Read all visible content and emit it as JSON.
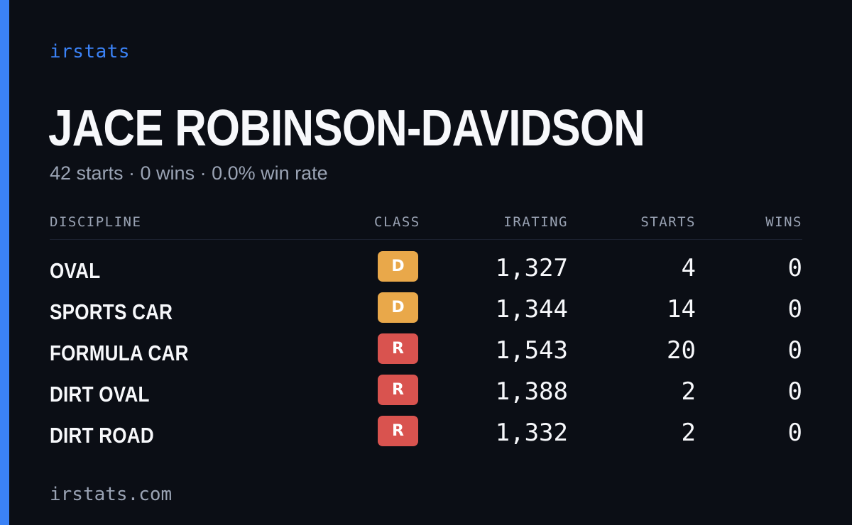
{
  "brand": "irstats",
  "driver": {
    "name": "JACE ROBINSON-DAVIDSON",
    "summary": "42 starts · 0 wins · 0.0% win rate"
  },
  "table": {
    "headers": {
      "discipline": "DISCIPLINE",
      "class": "CLASS",
      "irating": "IRATING",
      "starts": "STARTS",
      "wins": "WINS"
    },
    "rows": [
      {
        "discipline": "OVAL",
        "class": "D",
        "class_color": "#e9a84a",
        "irating": "1,327",
        "starts": "4",
        "wins": "0"
      },
      {
        "discipline": "SPORTS CAR",
        "class": "D",
        "class_color": "#e9a84a",
        "irating": "1,344",
        "starts": "14",
        "wins": "0"
      },
      {
        "discipline": "FORMULA CAR",
        "class": "R",
        "class_color": "#d9534f",
        "irating": "1,543",
        "starts": "20",
        "wins": "0"
      },
      {
        "discipline": "DIRT OVAL",
        "class": "R",
        "class_color": "#d9534f",
        "irating": "1,388",
        "starts": "2",
        "wins": "0"
      },
      {
        "discipline": "DIRT ROAD",
        "class": "R",
        "class_color": "#d9534f",
        "irating": "1,332",
        "starts": "2",
        "wins": "0"
      }
    ]
  },
  "footer": "irstats.com",
  "colors": {
    "background": "#0b0e15",
    "accent": "#3b82f6",
    "muted_text": "#9aa3b4"
  }
}
